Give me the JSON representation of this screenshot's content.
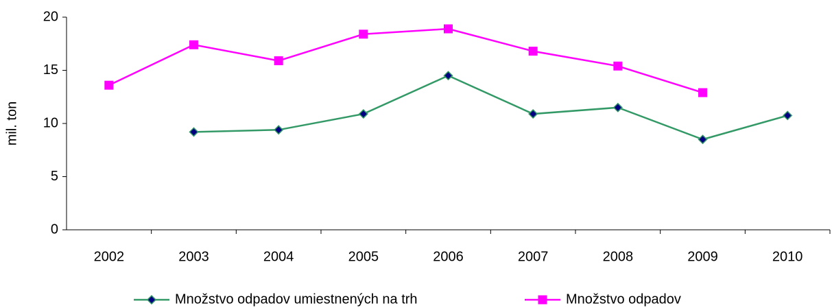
{
  "chart_data": {
    "type": "line",
    "y_label": "mil. ton",
    "categories": [
      "2002",
      "2003",
      "2004",
      "2005",
      "2006",
      "2007",
      "2008",
      "2009",
      "2010"
    ],
    "series": [
      {
        "name": "Množstvo odpadov umiestnených na trh",
        "color": "#339966",
        "marker": "diamond",
        "marker_fill": "#000080",
        "values": [
          null,
          9.2,
          9.4,
          10.9,
          14.5,
          10.9,
          11.5,
          8.5,
          10.75
        ]
      },
      {
        "name": "Množstvo odpadov",
        "color": "#ff00ff",
        "marker": "square",
        "marker_fill": "#ff00ff",
        "values": [
          13.6,
          17.4,
          15.9,
          18.4,
          18.9,
          16.8,
          15.4,
          12.9,
          null
        ]
      }
    ],
    "ylim": [
      0,
      20
    ],
    "yticks": [
      0,
      5,
      10,
      15,
      20
    ],
    "grid": false,
    "legend": "bottom"
  }
}
